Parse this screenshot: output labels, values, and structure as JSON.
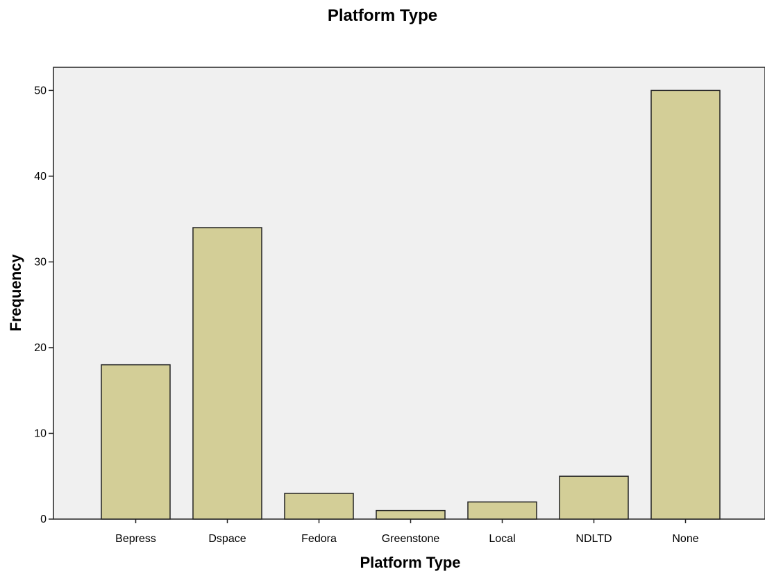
{
  "chart_data": {
    "type": "bar",
    "title": "Platform Type",
    "xlabel": "Platform Type",
    "ylabel": "Frequency",
    "categories": [
      "Bepress",
      "Dspace",
      "Fedora",
      "Greenstone",
      "Local",
      "NDLTD",
      "None"
    ],
    "values": [
      18,
      34,
      3,
      1,
      2,
      5,
      50
    ],
    "ylim": [
      0,
      52.7
    ],
    "yticks": [
      "0",
      "10",
      "20",
      "30",
      "40",
      "50"
    ],
    "grid": false,
    "colors": {
      "bar": "#d3ce97",
      "plot_background": "#f0f0f0",
      "outline": "#222222"
    }
  }
}
